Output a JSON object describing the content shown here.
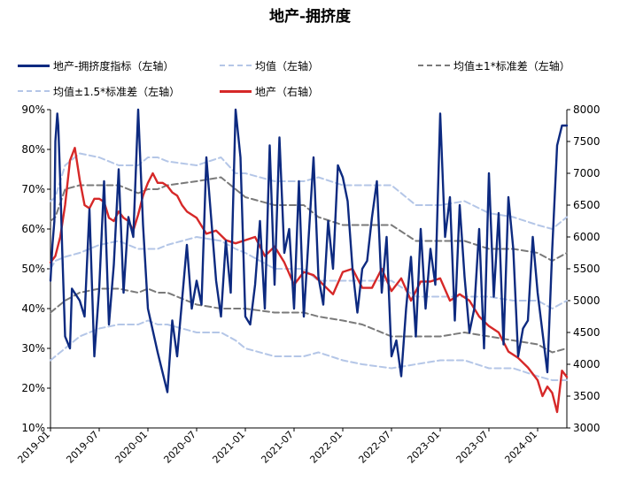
{
  "chart_data": {
    "type": "line",
    "title": "地产-拥挤度",
    "x_tick_labels": [
      "2019-01",
      "2019-07",
      "2020-01",
      "2020-07",
      "2021-01",
      "2021-07",
      "2022-01",
      "2022-07",
      "2023-01",
      "2023-07",
      "2024-01"
    ],
    "x_range": [
      "2019-01",
      "2024-04"
    ],
    "left_axis": {
      "ticks": [
        "10%",
        "20%",
        "30%",
        "40%",
        "50%",
        "60%",
        "70%",
        "80%",
        "90%"
      ],
      "min": 10,
      "max": 90,
      "unit": "%"
    },
    "right_axis": {
      "ticks": [
        "3000",
        "3500",
        "4000",
        "4500",
        "5000",
        "5500",
        "6000",
        "6500",
        "7000",
        "7500",
        "8000"
      ],
      "min": 3000,
      "max": 8000
    },
    "legend": {
      "crowding": "地产-拥挤度指标（左轴）",
      "mean": "均值（左轴）",
      "mean_1sd": "均值±1*标准差（左轴）",
      "mean_15sd": "均值±1.5*标准差（左轴）",
      "index": "地产（右轴）"
    },
    "colors": {
      "crowding": "#0d2a80",
      "mean": "#b4c6e7",
      "mean_1sd": "#7a7a7a",
      "mean_15sd": "#b4c6e7",
      "index": "#d62828",
      "axis": "#000000"
    },
    "series": [
      {
        "name": "地产-拥挤度指标（左轴）",
        "axis": "left",
        "t": [
          0,
          0.02,
          0.04,
          0.05,
          0.07,
          0.08,
          0.1,
          0.12,
          0.15,
          0.2,
          0.22,
          0.3,
          0.35,
          0.4,
          0.45,
          0.5,
          0.55,
          0.6,
          0.65,
          0.7,
          0.75,
          0.8,
          0.85,
          0.9,
          0.95,
          1.0,
          1.1,
          1.2,
          1.25,
          1.3,
          1.4,
          1.45,
          1.5,
          1.55,
          1.6,
          1.7,
          1.75,
          1.8,
          1.85,
          1.9,
          1.95,
          2.0,
          2.05,
          2.1,
          2.15,
          2.2,
          2.25,
          2.3,
          2.35,
          2.4,
          2.45,
          2.5,
          2.55,
          2.6,
          2.7,
          2.75,
          2.8,
          2.85,
          2.9,
          2.95,
          3.0,
          3.05,
          3.1,
          3.15,
          3.2,
          3.25,
          3.3,
          3.35,
          3.4,
          3.45,
          3.5,
          3.55,
          3.6,
          3.65,
          3.7,
          3.75,
          3.8,
          3.85,
          3.9,
          3.95,
          4.0,
          4.05,
          4.1,
          4.15,
          4.2,
          4.25,
          4.3,
          4.35,
          4.4,
          4.45,
          4.5,
          4.55,
          4.6,
          4.65,
          4.7,
          4.75,
          4.8,
          4.85,
          4.9,
          4.95,
          5.0,
          5.05,
          5.1,
          5.15,
          5.2,
          5.25,
          5.3
        ],
        "values": [
          47,
          56,
          62,
          82,
          89,
          86,
          72,
          55,
          33,
          30,
          45,
          42,
          38,
          65,
          28,
          45,
          72,
          36,
          51,
          75,
          44,
          63,
          58,
          90,
          61,
          40,
          29,
          19,
          37,
          28,
          56,
          40,
          47,
          41,
          78,
          47,
          38,
          57,
          44,
          90,
          78,
          38,
          36,
          46,
          62,
          40,
          81,
          46,
          83,
          54,
          60,
          40,
          72,
          38,
          78,
          48,
          41,
          62,
          50,
          76,
          73,
          67,
          50,
          39,
          50,
          52,
          63,
          72,
          44,
          58,
          28,
          32,
          23,
          40,
          53,
          33,
          60,
          40,
          55,
          46,
          89,
          58,
          68,
          37,
          66,
          48,
          34,
          40,
          60,
          30,
          74,
          43,
          64,
          31,
          68,
          55,
          28,
          35,
          37,
          58,
          44,
          34,
          24,
          55,
          81,
          86,
          86
        ]
      },
      {
        "name": "均值（左轴）",
        "axis": "left",
        "t": [
          0,
          0.05,
          0.15,
          0.3,
          0.5,
          0.7,
          0.9,
          1.0,
          1.1,
          1.2,
          1.5,
          1.75,
          1.9,
          2.0,
          2.3,
          2.6,
          2.75,
          3.0,
          3.2,
          3.5,
          3.75,
          4.0,
          4.25,
          4.5,
          4.75,
          5.0,
          5.15,
          5.3
        ],
        "values": [
          50,
          52,
          53,
          54,
          56,
          57,
          55,
          55,
          55,
          56,
          58,
          57,
          55,
          54,
          50,
          50,
          47,
          47,
          47,
          47,
          43,
          43,
          43,
          43,
          42,
          42,
          40,
          42
        ]
      },
      {
        "name": "均值±1*标准差（左轴）",
        "axis": "left",
        "t": [
          0,
          0.05,
          0.15,
          0.3,
          0.5,
          0.7,
          0.9,
          1.0,
          1.1,
          1.2,
          1.5,
          1.75,
          1.9,
          2.0,
          2.3,
          2.6,
          2.75,
          3.0,
          3.2,
          3.5,
          3.75,
          4.0,
          4.25,
          4.5,
          4.75,
          5.0,
          5.15,
          5.3
        ],
        "values": [
          62,
          63,
          70,
          71,
          71,
          71,
          69,
          70,
          70,
          71,
          72,
          73,
          70,
          68,
          66,
          66,
          63,
          61,
          61,
          61,
          57,
          57,
          57,
          55,
          55,
          54,
          52,
          54
        ]
      },
      {
        "name": "均值±1*标准差（左轴）",
        "axis": "left",
        "t": [
          0,
          0.05,
          0.15,
          0.3,
          0.5,
          0.7,
          0.9,
          1.0,
          1.1,
          1.2,
          1.5,
          1.75,
          1.9,
          2.0,
          2.3,
          2.6,
          2.75,
          3.0,
          3.2,
          3.5,
          3.75,
          4.0,
          4.25,
          4.5,
          4.75,
          5.0,
          5.15,
          5.3
        ],
        "values": [
          39,
          40,
          42,
          44,
          45,
          45,
          44,
          45,
          44,
          44,
          41,
          40,
          40,
          40,
          39,
          39,
          38,
          37,
          36,
          33,
          33,
          33,
          34,
          33,
          32,
          31,
          29,
          30
        ]
      },
      {
        "name": "均值±1.5*标准差（左轴）",
        "axis": "left",
        "t": [
          0,
          0.05,
          0.15,
          0.3,
          0.5,
          0.7,
          0.9,
          1.0,
          1.1,
          1.2,
          1.5,
          1.75,
          1.9,
          2.0,
          2.3,
          2.6,
          2.75,
          3.0,
          3.2,
          3.5,
          3.75,
          4.0,
          4.25,
          4.5,
          4.75,
          5.0,
          5.15,
          5.3
        ],
        "values": [
          67,
          68,
          76,
          79,
          78,
          76,
          76,
          78,
          78,
          77,
          76,
          78,
          74,
          74,
          72,
          72,
          73,
          71,
          71,
          71,
          66,
          66,
          67,
          64,
          63,
          61,
          60,
          63
        ]
      },
      {
        "name": "均值±1.5*标准差（左轴）",
        "axis": "left",
        "t": [
          0,
          0.05,
          0.15,
          0.3,
          0.5,
          0.7,
          0.9,
          1.0,
          1.1,
          1.2,
          1.5,
          1.75,
          1.9,
          2.0,
          2.3,
          2.6,
          2.75,
          3.0,
          3.2,
          3.5,
          3.75,
          4.0,
          4.25,
          4.5,
          4.75,
          5.0,
          5.15,
          5.3
        ],
        "values": [
          27,
          28,
          30,
          33,
          35,
          36,
          36,
          37,
          36,
          36,
          34,
          34,
          32,
          30,
          28,
          28,
          29,
          27,
          26,
          25,
          26,
          27,
          27,
          25,
          25,
          23,
          22,
          22
        ]
      },
      {
        "name": "地产（右轴）",
        "axis": "right",
        "t": [
          0,
          0.05,
          0.1,
          0.15,
          0.2,
          0.25,
          0.3,
          0.35,
          0.4,
          0.45,
          0.5,
          0.55,
          0.6,
          0.65,
          0.7,
          0.75,
          0.8,
          0.85,
          0.9,
          0.95,
          1.0,
          1.05,
          1.1,
          1.15,
          1.2,
          1.25,
          1.3,
          1.35,
          1.4,
          1.5,
          1.6,
          1.7,
          1.8,
          1.9,
          2.0,
          2.1,
          2.2,
          2.3,
          2.4,
          2.5,
          2.6,
          2.7,
          2.8,
          2.9,
          3.0,
          3.1,
          3.2,
          3.3,
          3.4,
          3.5,
          3.6,
          3.7,
          3.8,
          3.9,
          4.0,
          4.1,
          4.2,
          4.3,
          4.4,
          4.5,
          4.6,
          4.7,
          4.8,
          4.9,
          5.0,
          5.05,
          5.1,
          5.15,
          5.2,
          5.25,
          5.3
        ],
        "values": [
          5600,
          5700,
          6000,
          6500,
          7200,
          7400,
          6900,
          6500,
          6450,
          6600,
          6600,
          6550,
          6300,
          6250,
          6400,
          6300,
          6250,
          6100,
          6350,
          6650,
          6850,
          7000,
          6850,
          6850,
          6800,
          6700,
          6650,
          6500,
          6400,
          6300,
          6050,
          6100,
          5950,
          5900,
          5950,
          6000,
          5700,
          5850,
          5600,
          5250,
          5450,
          5400,
          5250,
          5100,
          5450,
          5500,
          5200,
          5200,
          5500,
          5150,
          5350,
          5000,
          5300,
          5300,
          5350,
          5000,
          5100,
          5000,
          4750,
          4600,
          4500,
          4200,
          4100,
          3950,
          3750,
          3500,
          3650,
          3550,
          3250,
          3900,
          3800
        ]
      }
    ]
  }
}
